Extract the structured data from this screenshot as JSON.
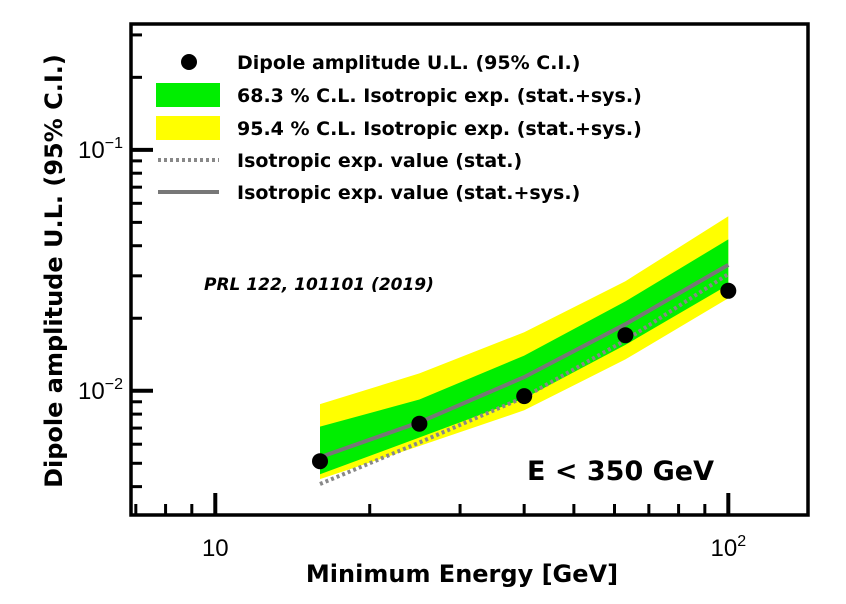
{
  "chart_data": {
    "type": "line",
    "xscale": "log",
    "yscale": "log",
    "xlabel": "Minimum Energy [GeV]",
    "ylabel": "Dipole amplitude U.L. (95% C.I.)",
    "xlim": [
      6.85,
      143
    ],
    "ylim": [
      0.00305,
      0.333
    ],
    "x_ticks": [
      {
        "value": 10,
        "base": "10",
        "exp": ""
      },
      {
        "value": 100,
        "base": "10",
        "exp": "2"
      }
    ],
    "y_ticks": [
      {
        "value": 0.01,
        "base": "10",
        "exp": "−2"
      },
      {
        "value": 0.1,
        "base": "10",
        "exp": "−1"
      }
    ],
    "points": {
      "name": "Dipole amplitude U.L. (95% C.I.)",
      "x": [
        16,
        25,
        40,
        63,
        100
      ],
      "y": [
        0.0051,
        0.0073,
        0.0095,
        0.017,
        0.026
      ]
    },
    "band_95": {
      "name": "95.4 % C.L. Isotropic exp. (stat.+sys.)",
      "color": "#ffff00",
      "x": [
        16,
        25,
        40,
        63,
        100
      ],
      "lower": [
        0.0043,
        0.0059,
        0.0083,
        0.0135,
        0.0242
      ],
      "upper": [
        0.0088,
        0.0118,
        0.0175,
        0.0285,
        0.053
      ]
    },
    "band_68": {
      "name": "68.3 % C.L. Isotropic exp. (stat.+sys.)",
      "color": "#00ee00",
      "x": [
        16,
        25,
        40,
        63,
        100
      ],
      "lower": [
        0.0045,
        0.0064,
        0.0093,
        0.0155,
        0.0275
      ],
      "upper": [
        0.0071,
        0.0092,
        0.014,
        0.0235,
        0.0425
      ]
    },
    "line_stat": {
      "name": "Isotropic exp. value (stat.)",
      "style": "dotted",
      "color": "#888888",
      "x": [
        16,
        25,
        40,
        63,
        100
      ],
      "y": [
        0.0041,
        0.0061,
        0.0094,
        0.0162,
        0.0305
      ]
    },
    "line_statsys": {
      "name": "Isotropic exp. value (stat.+sys.)",
      "style": "solid",
      "color": "#777777",
      "x": [
        16,
        25,
        40,
        63,
        100
      ],
      "y": [
        0.0053,
        0.0074,
        0.0114,
        0.0189,
        0.0333
      ]
    },
    "legend": [
      {
        "key": "points",
        "label": "Dipole amplitude U.L. (95% C.I.)"
      },
      {
        "key": "band_68",
        "label": "68.3 % C.L. Isotropic exp. (stat.+sys.)"
      },
      {
        "key": "band_95",
        "label": "95.4 % C.L. Isotropic exp. (stat.+sys.)"
      },
      {
        "key": "line_stat",
        "label": "Isotropic exp. value (stat.)"
      },
      {
        "key": "line_statsys",
        "label": "Isotropic exp. value (stat.+sys.)"
      }
    ],
    "legend_position": "top-left",
    "annotations": {
      "reference": "PRL 122, 101101 (2019)",
      "energy_cut": "E < 350 GeV"
    }
  }
}
